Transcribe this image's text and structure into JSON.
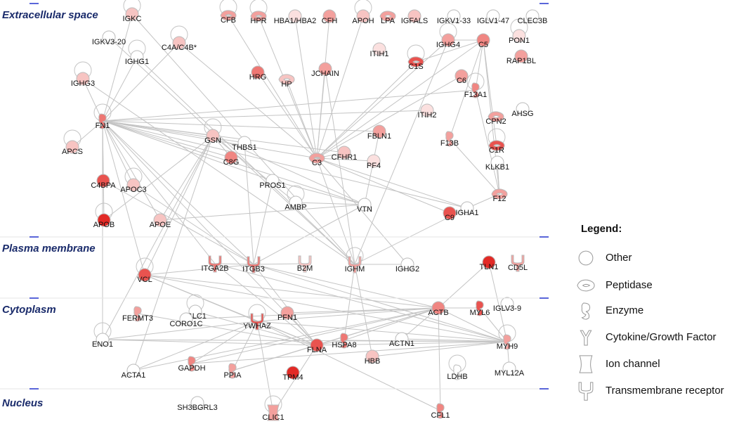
{
  "sections": [
    "Extracellular space",
    "Plasma membrane",
    "Cytoplasm",
    "Nucleus"
  ],
  "nodes": [
    {
      "label": "IGKC",
      "shape": "other",
      "color": "#f7c4c2"
    },
    {
      "label": "CFB",
      "shape": "peptidase",
      "color": "#f3a09d"
    },
    {
      "label": "HPR",
      "shape": "peptidase",
      "color": "#f3a09d"
    },
    {
      "label": "HBA1/HBA2",
      "shape": "other",
      "color": "#fbe0df"
    },
    {
      "label": "CFH",
      "shape": "other",
      "color": "#f3a09d"
    },
    {
      "label": "APOH",
      "shape": "other",
      "color": "#f7c4c2"
    },
    {
      "label": "LPA",
      "shape": "peptidase",
      "color": "#f3a09d"
    },
    {
      "label": "IGFALS",
      "shape": "other",
      "color": "#f7c4c2"
    },
    {
      "label": "IGKV1-33",
      "shape": "other",
      "color": "#ffffff"
    },
    {
      "label": "IGLV1-47",
      "shape": "other",
      "color": "#ffffff"
    },
    {
      "label": "CLEC3B",
      "shape": "other",
      "color": "#ffffff"
    },
    {
      "label": "PON1",
      "shape": "other",
      "color": "#fbe0df"
    },
    {
      "label": "RAP1BL",
      "shape": "other",
      "color": "#f3a09d"
    },
    {
      "label": "IGKV3-20",
      "shape": "other",
      "color": "#ffffff"
    },
    {
      "label": "C4A/C4B*",
      "shape": "other",
      "color": "#f7c4c2"
    },
    {
      "label": "IGHG4",
      "shape": "other",
      "color": "#f3a09d"
    },
    {
      "label": "C5",
      "shape": "other",
      "color": "#f08682"
    },
    {
      "label": "ITIH1",
      "shape": "other",
      "color": "#fbe0df"
    },
    {
      "label": "IGHG1",
      "shape": "other",
      "color": "#ffffff"
    },
    {
      "label": "C1S",
      "shape": "peptidase",
      "color": "#e9534f"
    },
    {
      "label": "HRG",
      "shape": "other",
      "color": "#ee7773"
    },
    {
      "label": "HP",
      "shape": "peptidase",
      "color": "#f7c4c2"
    },
    {
      "label": "JCHAIN",
      "shape": "other",
      "color": "#f3a09d"
    },
    {
      "label": "C6",
      "shape": "other",
      "color": "#f3a09d"
    },
    {
      "label": "IGHG3",
      "shape": "other",
      "color": "#f7c4c2"
    },
    {
      "label": "F13A1",
      "shape": "enzyme",
      "color": "#f08682"
    },
    {
      "label": "AHSG",
      "shape": "other",
      "color": "#ffffff"
    },
    {
      "label": "ITIH2",
      "shape": "other",
      "color": "#fbe0df"
    },
    {
      "label": "CPN2",
      "shape": "peptidase",
      "color": "#f3a09d"
    },
    {
      "label": "FN1",
      "shape": "enzyme",
      "color": "#ee7773"
    },
    {
      "label": "FBLN1",
      "shape": "other",
      "color": "#f3a09d"
    },
    {
      "label": "GSN",
      "shape": "other",
      "color": "#f7c4c2"
    },
    {
      "label": "THBS1",
      "shape": "other",
      "color": "#ffffff"
    },
    {
      "label": "F13B",
      "shape": "enzyme",
      "color": "#f3a09d"
    },
    {
      "label": "APCS",
      "shape": "other",
      "color": "#f7c4c2"
    },
    {
      "label": "C1R",
      "shape": "peptidase",
      "color": "#e9534f"
    },
    {
      "label": "CFHR1",
      "shape": "other",
      "color": "#f7c4c2"
    },
    {
      "label": "C3",
      "shape": "peptidase",
      "color": "#f3a09d"
    },
    {
      "label": "PF4",
      "shape": "other",
      "color": "#fbe0df"
    },
    {
      "label": "C8G",
      "shape": "other",
      "color": "#f08682"
    },
    {
      "label": "KLKB1",
      "shape": "other",
      "color": "#ffffff"
    },
    {
      "label": "C4BPA",
      "shape": "other",
      "color": "#e9534f"
    },
    {
      "label": "PROS1",
      "shape": "other",
      "color": "#ffffff"
    },
    {
      "label": "APOC3",
      "shape": "other",
      "color": "#f7c4c2"
    },
    {
      "label": "F12",
      "shape": "peptidase",
      "color": "#f3a09d"
    },
    {
      "label": "AMBP",
      "shape": "other",
      "color": "#ffffff"
    },
    {
      "label": "VTN",
      "shape": "other",
      "color": "#ffffff"
    },
    {
      "label": "IGHA1",
      "shape": "other",
      "color": "#ffffff"
    },
    {
      "label": "C9",
      "shape": "other",
      "color": "#e9534f"
    },
    {
      "label": "APOB",
      "shape": "other",
      "color": "#e22a26"
    },
    {
      "label": "APOE",
      "shape": "other",
      "color": "#f7c4c2"
    },
    {
      "label": "ITGA2B",
      "shape": "transmembrane",
      "color": "#ee7773"
    },
    {
      "label": "ITGB3",
      "shape": "transmembrane",
      "color": "#ee7773"
    },
    {
      "label": "B2M",
      "shape": "transmembrane",
      "color": "#f7c4c2"
    },
    {
      "label": "IGHM",
      "shape": "transmembrane",
      "color": "#f3a09d"
    },
    {
      "label": "IGHG2",
      "shape": "other",
      "color": "#ffffff"
    },
    {
      "label": "TLN1",
      "shape": "other",
      "color": "#e22a26"
    },
    {
      "label": "CD5L",
      "shape": "transmembrane",
      "color": "#f3a09d"
    },
    {
      "label": "VCL",
      "shape": "other",
      "color": "#e9534f"
    },
    {
      "label": "FERMT3",
      "shape": "enzyme",
      "color": "#f3a09d"
    },
    {
      "label": "IGLC1",
      "shape": "other",
      "color": "#ffffff"
    },
    {
      "label": "CORO1C",
      "shape": "other",
      "color": "#ffffff"
    },
    {
      "label": "YWHAZ",
      "shape": "transmembrane",
      "color": "#e9534f"
    },
    {
      "label": "PFN1",
      "shape": "other",
      "color": "#f3a09d"
    },
    {
      "label": "ACTB",
      "shape": "other",
      "color": "#f08682"
    },
    {
      "label": "MYL6",
      "shape": "enzyme",
      "color": "#e9534f"
    },
    {
      "label": "IGLV3-9",
      "shape": "other",
      "color": "#ffffff"
    },
    {
      "label": "ENO1",
      "shape": "other",
      "color": "#ffffff"
    },
    {
      "label": "FLNA",
      "shape": "other",
      "color": "#e9534f"
    },
    {
      "label": "HSPA8",
      "shape": "enzyme",
      "color": "#ee7773"
    },
    {
      "label": "ACTN1",
      "shape": "other",
      "color": "#ffffff"
    },
    {
      "label": "MYH9",
      "shape": "enzyme",
      "color": "#f3a09d"
    },
    {
      "label": "HBB",
      "shape": "other",
      "color": "#f7c4c2"
    },
    {
      "label": "ACTA1",
      "shape": "other",
      "color": "#ffffff"
    },
    {
      "label": "GAPDH",
      "shape": "enzyme",
      "color": "#f08682"
    },
    {
      "label": "PPIA",
      "shape": "enzyme",
      "color": "#f3a09d"
    },
    {
      "label": "TPM4",
      "shape": "other",
      "color": "#e22a26"
    },
    {
      "label": "LDHB",
      "shape": "enzyme",
      "color": "#ffffff"
    },
    {
      "label": "MYL12A",
      "shape": "other",
      "color": "#ffffff"
    },
    {
      "label": "SH3BGRL3",
      "shape": "other",
      "color": "#ffffff"
    },
    {
      "label": "CLIC1",
      "shape": "ion-channel",
      "color": "#f3a09d"
    },
    {
      "label": "CFL1",
      "shape": "enzyme",
      "color": "#f08682"
    }
  ],
  "legend": {
    "title": "Legend:",
    "items": [
      {
        "label": "Other",
        "shape": "other"
      },
      {
        "label": "Peptidase",
        "shape": "peptidase"
      },
      {
        "label": "Enzyme",
        "shape": "enzyme"
      },
      {
        "label": "Cytokine/Growth Factor",
        "shape": "cytokine"
      },
      {
        "label": "Ion channel",
        "shape": "ion-channel"
      },
      {
        "label": "Transmembrane receptor",
        "shape": "transmembrane"
      }
    ]
  }
}
